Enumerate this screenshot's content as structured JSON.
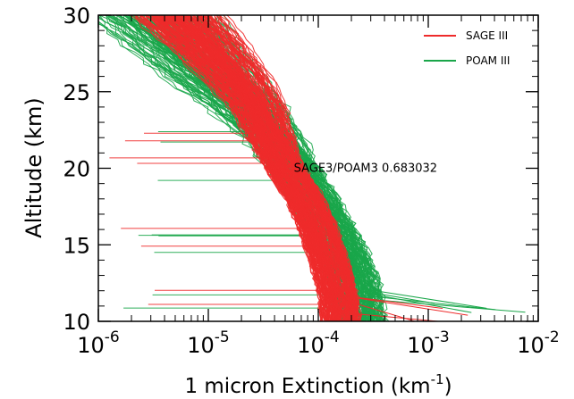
{
  "chart_data": {
    "type": "line",
    "xlabel": "1 micron Extinction (km",
    "xlabel_unit_sup": "-1",
    "xlabel_close": ")",
    "ylabel": "Altitude (km)",
    "x_scale": "log",
    "xlim": [
      1e-06,
      0.01
    ],
    "ylim": [
      10,
      30
    ],
    "x_ticks": [
      {
        "value": 1e-06,
        "base": "10",
        "exp": "-6"
      },
      {
        "value": 1e-05,
        "base": "10",
        "exp": "-5"
      },
      {
        "value": 0.0001,
        "base": "10",
        "exp": "-4"
      },
      {
        "value": 0.001,
        "base": "10",
        "exp": "-3"
      },
      {
        "value": 0.01,
        "base": "10",
        "exp": "-2"
      }
    ],
    "y_ticks": [
      {
        "value": 10,
        "label": "10"
      },
      {
        "value": 15,
        "label": "15"
      },
      {
        "value": 20,
        "label": "20"
      },
      {
        "value": 25,
        "label": "25"
      },
      {
        "value": 30,
        "label": "30"
      }
    ],
    "grid": false,
    "legend_position": "top-right",
    "annotation": {
      "text": "SAGE3/POAM3  0.683032",
      "x": 0.0021,
      "y": 20.0
    },
    "series": [
      {
        "name": "POAM III",
        "color": "#1aa64a",
        "profile_count": 160,
        "typical_profile": {
          "altitude": [
            10,
            12,
            14,
            16,
            18,
            20,
            22,
            24,
            26,
            28,
            30
          ],
          "extinction": [
            0.00024,
            0.00022,
            0.00018,
            0.00013,
            9e-05,
            6e-05,
            3.5e-05,
            1.8e-05,
            8e-06,
            4e-06,
            2e-06
          ]
        }
      },
      {
        "name": "SAGE III",
        "color": "#ee2b2b",
        "profile_count": 200,
        "typical_profile": {
          "altitude": [
            10,
            12,
            14,
            16,
            18,
            20,
            22,
            24,
            26,
            28,
            30
          ],
          "extinction": [
            0.00016,
            0.00015,
            0.000125,
            0.0001,
            7.5e-05,
            5e-05,
            3.5e-05,
            2.5e-05,
            1.5e-05,
            8e-06,
            4e-06
          ]
        }
      }
    ]
  }
}
